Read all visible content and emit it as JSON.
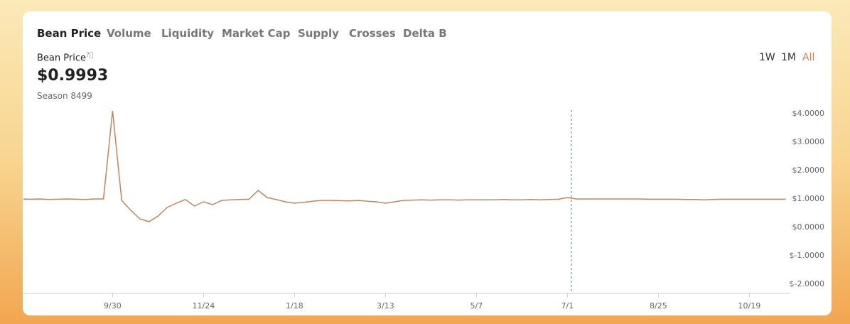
{
  "tabs": [
    "Bean Price",
    "Volume",
    "Liquidity",
    "Market Cap",
    "Supply",
    "Crosses",
    "Delta B"
  ],
  "price_label": "Bean Price",
  "price_value": "$0.9993",
  "season": "Season 8499",
  "ranges": [
    "1W",
    "1M",
    "All"
  ],
  "chart_data": {
    "type": "line",
    "color": "#c1855b",
    "categories": [
      null,
      null,
      null,
      null,
      null,
      null,
      null,
      null,
      null,
      null,
      "9/30",
      null,
      null,
      null,
      null,
      null,
      null,
      null,
      null,
      null,
      "11/24",
      null,
      null,
      null,
      null,
      null,
      null,
      null,
      null,
      null,
      "1/18",
      null,
      null,
      null,
      null,
      null,
      null,
      null,
      null,
      null,
      "3/13",
      null,
      null,
      null,
      null,
      null,
      null,
      null,
      null,
      null,
      "5/7",
      null,
      null,
      null,
      null,
      null,
      null,
      null,
      null,
      null,
      "7/1",
      null,
      null,
      null,
      null,
      null,
      null,
      null,
      null,
      null,
      "8/25",
      null,
      null,
      null,
      null,
      null,
      null,
      null,
      null,
      null,
      "10/19",
      null,
      null,
      null,
      null
    ],
    "values": [
      1.0,
      0.99,
      1.0,
      0.98,
      0.99,
      1.0,
      0.99,
      0.98,
      1.0,
      1.0,
      4.1,
      0.95,
      0.6,
      0.3,
      0.2,
      0.4,
      0.7,
      0.85,
      0.98,
      0.75,
      0.9,
      0.8,
      0.95,
      0.97,
      0.98,
      0.99,
      1.3,
      1.05,
      0.98,
      0.9,
      0.85,
      0.88,
      0.92,
      0.95,
      0.95,
      0.94,
      0.93,
      0.95,
      0.92,
      0.9,
      0.85,
      0.9,
      0.95,
      0.96,
      0.97,
      0.96,
      0.97,
      0.97,
      0.96,
      0.97,
      0.97,
      0.97,
      0.97,
      0.98,
      0.97,
      0.97,
      0.98,
      0.97,
      0.98,
      0.99,
      1.05,
      1.0,
      1.0,
      1.0,
      1.0,
      1.0,
      1.0,
      1.0,
      1.0,
      0.99,
      0.99,
      0.99,
      0.99,
      0.98,
      0.98,
      0.97,
      0.98,
      0.99,
      0.99,
      0.99,
      0.99,
      0.99,
      0.99,
      0.99,
      0.99
    ],
    "ylim": [
      -2.325,
      4.125
    ],
    "yticks": [
      {
        "value": 4,
        "label": "$4.0000"
      },
      {
        "value": 3,
        "label": "$3.0000"
      },
      {
        "value": 2,
        "label": "$2.0000"
      },
      {
        "value": 1,
        "label": "$1.0000"
      },
      {
        "value": 0,
        "label": "$0.0000"
      },
      {
        "value": -1,
        "label": "$-1.0000"
      },
      {
        "value": -2,
        "label": "$-2.0000"
      }
    ]
  }
}
